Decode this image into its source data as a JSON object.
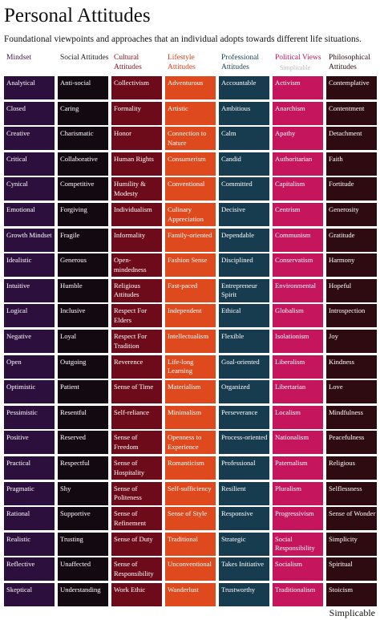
{
  "header": {
    "title": "Personal Attitudes",
    "subtitle": "Foundational viewpoints and approaches that an individual adopts towards different life situations."
  },
  "columns": [
    {
      "header": "Mindset",
      "items": [
        "Analytical",
        "Closed",
        "Creative",
        "Critical",
        "Cynical",
        "Emotional",
        "Growth Mindset",
        "Idealistic",
        "Intuitive",
        "Logical",
        "Negative",
        "Open",
        "Optimistic",
        "Pessimistic",
        "Positive",
        "Practical",
        "Pragmatic",
        "Rational",
        "Realistic",
        "Reflective",
        "Skeptical"
      ]
    },
    {
      "header": "Social Attitudes",
      "items": [
        "Anti-social",
        "Caring",
        "Charismatic",
        "Collaborative",
        "Competitive",
        "Forgiving",
        "Fragile",
        "Generous",
        "Humble",
        "Inclusive",
        "Loyal",
        "Outgoing",
        "Patient",
        "Resentful",
        "Reserved",
        "Respectful",
        "Shy",
        "Supportive",
        "Trusting",
        "Unaffected",
        "Understanding"
      ]
    },
    {
      "header": "Cultural Attitudes",
      "items": [
        "Collectivism",
        "Formality",
        "Honor",
        "Human Rights",
        "Humility & Modesty",
        "Individualism",
        "Informality",
        "Open-mindedness",
        "Religious Attitudes",
        "Respect For Elders",
        "Respect For Tradition",
        "Reverence",
        "Sense of Time",
        "Self-reliance",
        "Sense of Freedom",
        "Sense of Hospitality",
        "Sense of Politeness",
        "Sense of Refinement",
        "Sense of Duty",
        "Sense of Responsibility",
        "Work Ethic"
      ]
    },
    {
      "header": "Lifestyle Attitudes",
      "items": [
        "Adventurous",
        "Artistic",
        "Connection to Nature",
        "Consumerism",
        "Conventional",
        "Culinary Appreciation",
        "Family-oriented",
        "Fashion Sense",
        "Fast-paced",
        "Independent",
        "Intellectualism",
        "Life-long Learning",
        "Materialism",
        "Minimalism",
        "Openness to Experience",
        "Romanticism",
        "Self-sufficiency",
        "Sense of Style",
        "Traditional",
        "Unconventional",
        "Wanderlust"
      ]
    },
    {
      "header": "Professional Attitudes",
      "items": [
        "Accountable",
        "Ambitious",
        "Calm",
        "Candid",
        "Committed",
        "Decisive",
        "Dependable",
        "Disciplined",
        "Entrepreneur Spirit",
        "Ethical",
        "Flexible",
        "Goal-oriented",
        "Organized",
        "Perseverance",
        "Process-oriented",
        "Professional",
        "Resilient",
        "Responsive",
        "Strategic",
        "Takes Initiative",
        "Trustworthy"
      ]
    },
    {
      "header": "Political Views",
      "items": [
        "Activism",
        "Anarchism",
        "Apathy",
        "Authoritarian",
        "Capitalism",
        "Centrism",
        "Communism",
        "Conservatism",
        "Environmental",
        "Globalism",
        "Isolationism",
        "Liberalism",
        "Libertarian",
        "Localism",
        "Nationalism",
        "Paternalism",
        "Pluralism",
        "Progressivism",
        "Social Responsibility",
        "Socialism",
        "Traditionalism"
      ]
    },
    {
      "header": "Philosophical Attitudes",
      "items": [
        "Contemplative",
        "Contentment",
        "Detachment",
        "Faith",
        "Fortitude",
        "Generosity",
        "Gratitude",
        "Harmony",
        "Hopeful",
        "Introspection",
        "Joy",
        "Kindness",
        "Love",
        "Mindfulness",
        "Peacefulness",
        "Religious",
        "Selflessness",
        "Sense of Wonder",
        "Simplicity",
        "Spiritual",
        "Stoicism"
      ]
    }
  ],
  "watermark": "Simplicable",
  "footer": "Simplicable"
}
